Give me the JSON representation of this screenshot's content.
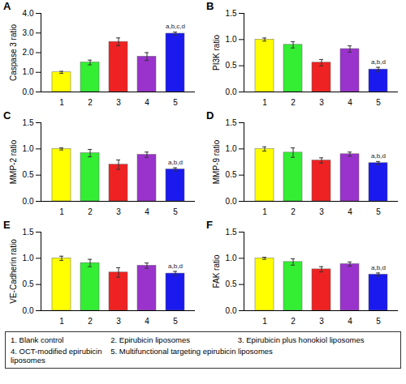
{
  "chart_data": [
    {
      "type": "bar",
      "panel": "A",
      "y_label": "Caspase 3 ratio",
      "categories": [
        "1",
        "2",
        "3",
        "4",
        "5"
      ],
      "values": [
        1.0,
        1.5,
        2.55,
        1.8,
        2.97
      ],
      "errors": [
        0.05,
        0.12,
        0.2,
        0.2,
        0.08
      ],
      "colors": [
        "#ffff00",
        "#33ee33",
        "#ee2222",
        "#9933cc",
        "#1a1aee"
      ],
      "ylim": [
        0,
        4
      ],
      "yticks": [
        0,
        1,
        2,
        3,
        4
      ],
      "annotations": [
        {
          "category": "5",
          "text": "a,b,c,d"
        }
      ]
    },
    {
      "type": "bar",
      "panel": "B",
      "y_label": "PI3K ratio",
      "categories": [
        "1",
        "2",
        "3",
        "4",
        "5"
      ],
      "values": [
        1.0,
        0.9,
        0.56,
        0.82,
        0.43
      ],
      "errors": [
        0.03,
        0.06,
        0.06,
        0.06,
        0.04
      ],
      "colors": [
        "#ffff00",
        "#33ee33",
        "#ee2222",
        "#9933cc",
        "#1a1aee"
      ],
      "ylim": [
        0,
        1.5
      ],
      "yticks": [
        0,
        0.5,
        1,
        1.5
      ],
      "annotations": [
        {
          "category": "5",
          "text": "a,b,d"
        }
      ]
    },
    {
      "type": "bar",
      "panel": "C",
      "y_label": "MMP-2 ratio",
      "categories": [
        "1",
        "2",
        "3",
        "4",
        "5"
      ],
      "values": [
        1.0,
        0.92,
        0.7,
        0.89,
        0.61
      ],
      "errors": [
        0.02,
        0.07,
        0.09,
        0.05,
        0.03
      ],
      "colors": [
        "#ffff00",
        "#33ee33",
        "#ee2222",
        "#9933cc",
        "#1a1aee"
      ],
      "ylim": [
        0,
        1.5
      ],
      "yticks": [
        0,
        0.5,
        1,
        1.5
      ],
      "annotations": [
        {
          "category": "5",
          "text": "a,b,d"
        }
      ]
    },
    {
      "type": "bar",
      "panel": "D",
      "y_label": "MMP-9 ratio",
      "categories": [
        "1",
        "2",
        "3",
        "4",
        "5"
      ],
      "values": [
        1.0,
        0.93,
        0.78,
        0.9,
        0.73
      ],
      "errors": [
        0.04,
        0.09,
        0.05,
        0.04,
        0.03
      ],
      "colors": [
        "#ffff00",
        "#33ee33",
        "#ee2222",
        "#9933cc",
        "#1a1aee"
      ],
      "ylim": [
        0,
        1.5
      ],
      "yticks": [
        0,
        0.5,
        1,
        1.5
      ],
      "annotations": [
        {
          "category": "5",
          "text": "a,b,d"
        }
      ]
    },
    {
      "type": "bar",
      "panel": "E",
      "y_label": "VE-Cadherin ratio",
      "categories": [
        "1",
        "2",
        "3",
        "4",
        "5"
      ],
      "values": [
        1.0,
        0.91,
        0.73,
        0.86,
        0.71
      ],
      "errors": [
        0.04,
        0.07,
        0.09,
        0.05,
        0.04
      ],
      "colors": [
        "#ffff00",
        "#33ee33",
        "#ee2222",
        "#9933cc",
        "#1a1aee"
      ],
      "ylim": [
        0,
        1.5
      ],
      "yticks": [
        0,
        0.5,
        1,
        1.5
      ],
      "annotations": [
        {
          "category": "5",
          "text": "a,b,d"
        }
      ]
    },
    {
      "type": "bar",
      "panel": "F",
      "y_label": "FAK ratio",
      "categories": [
        "1",
        "2",
        "3",
        "4",
        "5"
      ],
      "values": [
        1.0,
        0.93,
        0.79,
        0.89,
        0.69
      ],
      "errors": [
        0.02,
        0.06,
        0.05,
        0.04,
        0.03
      ],
      "colors": [
        "#ffff00",
        "#33ee33",
        "#ee2222",
        "#9933cc",
        "#1a1aee"
      ],
      "ylim": [
        0,
        1.5
      ],
      "yticks": [
        0,
        0.5,
        1,
        1.5
      ],
      "annotations": [
        {
          "category": "5",
          "text": "a,b,d"
        }
      ]
    }
  ],
  "key": [
    "1. Blank control",
    "2. Epirubicin liposomes",
    "3. Epirubicin plus honokiol liposomes",
    "4. OCT-modified epirubicin liposomes",
    "5. Multifunctional targeting epirubicin liposomes"
  ]
}
